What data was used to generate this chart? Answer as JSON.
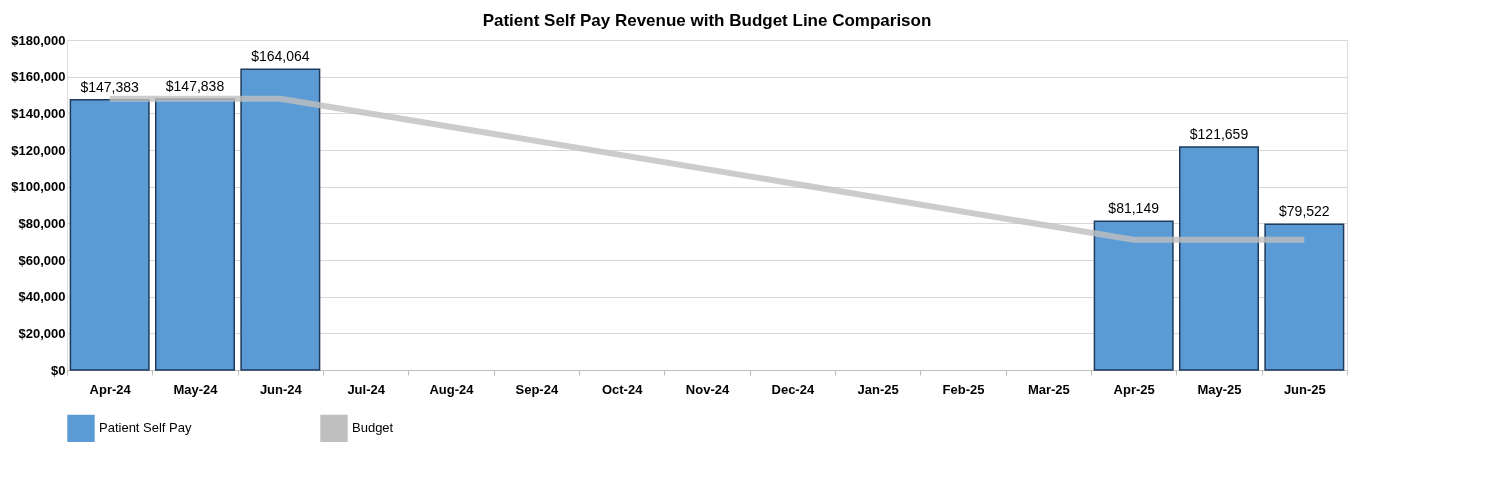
{
  "chart_data": {
    "type": "bar",
    "title": "Patient Self Pay Revenue with Budget Line Comparison",
    "categories": [
      "Apr-24",
      "May-24",
      "Jun-24",
      "Jul-24",
      "Aug-24",
      "Sep-24",
      "Oct-24",
      "Nov-24",
      "Dec-24",
      "Jan-25",
      "Feb-25",
      "Mar-25",
      "Apr-25",
      "May-25",
      "Jun-25"
    ],
    "series": [
      {
        "name": "Patient Self Pay",
        "color": "#5b9bd5",
        "values": [
          147383,
          147838,
          164064,
          null,
          null,
          null,
          null,
          null,
          null,
          null,
          null,
          null,
          81149,
          121659,
          79522
        ],
        "value_labels": [
          "$147,383",
          "$147,838",
          "$164,064",
          null,
          null,
          null,
          null,
          null,
          null,
          null,
          null,
          null,
          "$81,149",
          "$121,659",
          "$79,522"
        ]
      },
      {
        "name": "Budget",
        "type": "line",
        "color": "#bfbfbf",
        "values": [
          148000,
          148000,
          148000,
          null,
          null,
          null,
          null,
          null,
          null,
          null,
          null,
          null,
          71000,
          71000,
          71000
        ]
      }
    ],
    "ylim": [
      0,
      180000
    ],
    "yticks": [
      {
        "value": 0,
        "label": "$0"
      },
      {
        "value": 20000,
        "label": "$20,000"
      },
      {
        "value": 40000,
        "label": "$40,000"
      },
      {
        "value": 60000,
        "label": "$60,000"
      },
      {
        "value": 80000,
        "label": "$80,000"
      },
      {
        "value": 100000,
        "label": "$100,000"
      },
      {
        "value": 120000,
        "label": "$120,000"
      },
      {
        "value": 140000,
        "label": "$140,000"
      },
      {
        "value": 160000,
        "label": "$160,000"
      },
      {
        "value": 180000,
        "label": "$180,000"
      }
    ],
    "grid": "y",
    "legend": "bottom"
  }
}
